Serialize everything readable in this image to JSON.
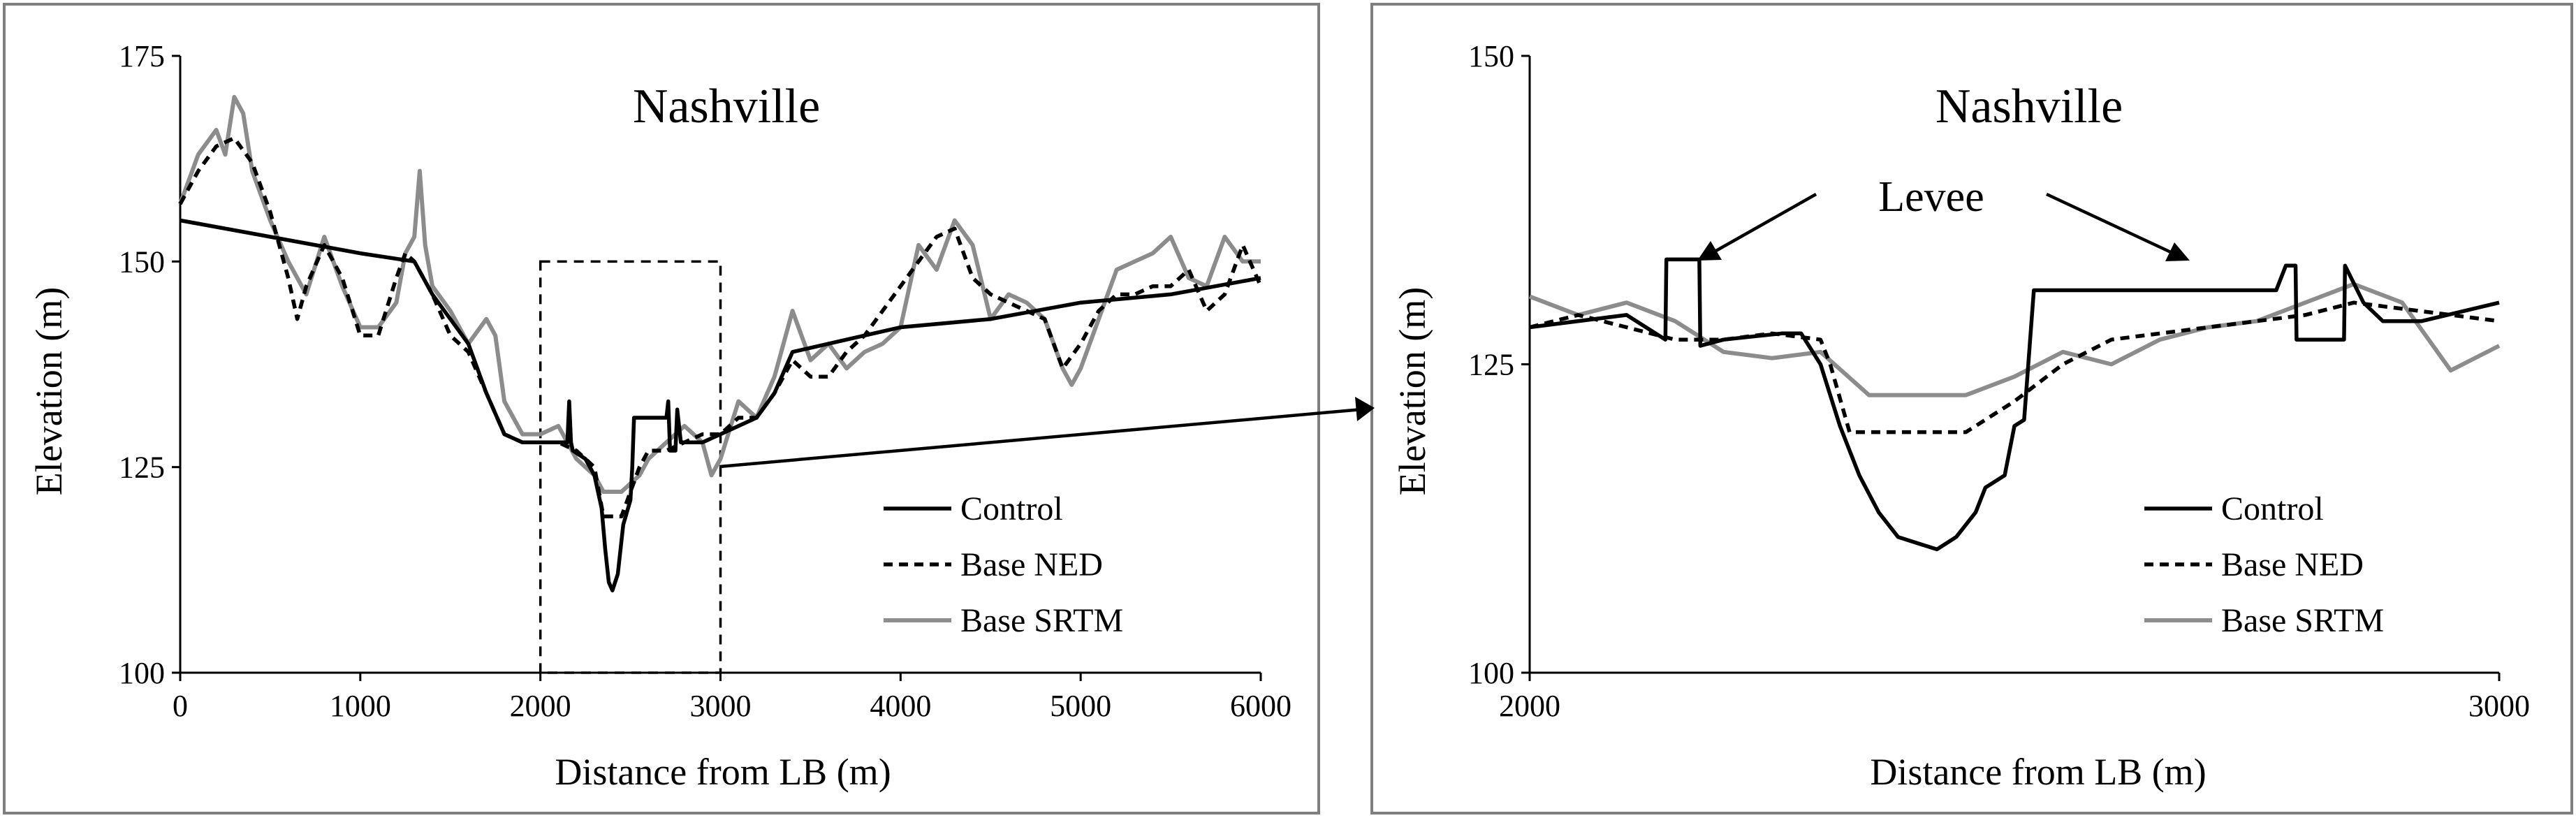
{
  "colors": {
    "control": "#000000",
    "base_ned": "#000000",
    "base_srtm": "#8c8c8c",
    "frame": "#7f7f7f"
  },
  "chart_data": [
    {
      "type": "line",
      "title": "Nashville",
      "xlabel": "Distance from LB (m)",
      "ylabel": "Elevation (m)",
      "xlim": [
        0,
        6000
      ],
      "ylim": [
        100,
        175
      ],
      "x_ticks": [
        0,
        1000,
        2000,
        3000,
        4000,
        5000,
        6000
      ],
      "y_ticks": [
        100,
        125,
        150,
        175
      ],
      "x_tick_labels": [
        "0",
        "1000",
        "2000",
        "3000",
        "4000",
        "5000",
        "6000"
      ],
      "y_tick_labels": [
        "100",
        "125",
        "150",
        "175"
      ],
      "legend": [
        "Control",
        "Base NED",
        "Base SRTM"
      ],
      "zoom_box": {
        "x": [
          2000,
          3000
        ],
        "y": [
          100,
          150
        ]
      },
      "series": [
        {
          "name": "Control",
          "style": "solid",
          "x": [
            0,
            500,
            1000,
            1300,
            1400,
            1600,
            1700,
            1800,
            1900,
            2000,
            2100,
            2150,
            2160,
            2170,
            2180,
            2250,
            2300,
            2340,
            2360,
            2380,
            2400,
            2430,
            2460,
            2500,
            2510,
            2520,
            2700,
            2710,
            2720,
            2750,
            2760,
            2780,
            2900,
            3000,
            3200,
            3300,
            3400,
            3600,
            4000,
            4500,
            5000,
            5500,
            6000
          ],
          "y": [
            155,
            153,
            151,
            150,
            146,
            140,
            134,
            129,
            128,
            128,
            128,
            128,
            133,
            128,
            127,
            126,
            124,
            120,
            115,
            111,
            110,
            112,
            118,
            121,
            125,
            131,
            131,
            133,
            127,
            127,
            132,
            128,
            128,
            129,
            131,
            134,
            139,
            140,
            142,
            143,
            145,
            146,
            148
          ]
        },
        {
          "name": "Base NED",
          "style": "dashed",
          "x": [
            0,
            100,
            200,
            300,
            400,
            500,
            600,
            650,
            700,
            800,
            900,
            1000,
            1100,
            1200,
            1250,
            1300,
            1350,
            1400,
            1500,
            1600,
            1700,
            1800,
            1900,
            2000,
            2100,
            2200,
            2300,
            2350,
            2400,
            2450,
            2500,
            2550,
            2600,
            2700,
            2800,
            2900,
            3000,
            3100,
            3200,
            3300,
            3400,
            3500,
            3600,
            3700,
            3800,
            3900,
            4000,
            4100,
            4200,
            4300,
            4400,
            4500,
            4600,
            4700,
            4800,
            4900,
            5000,
            5100,
            5200,
            5300,
            5400,
            5500,
            5600,
            5700,
            5800,
            5900,
            6000
          ],
          "y": [
            157,
            161,
            164,
            165,
            162,
            156,
            148,
            143,
            147,
            152,
            148,
            141,
            141,
            148,
            151,
            150,
            148,
            146,
            141,
            139,
            134,
            129,
            128,
            128,
            128,
            127,
            125,
            119,
            119,
            119,
            122,
            125,
            127,
            127,
            128,
            129,
            129,
            131,
            131,
            134,
            138,
            136,
            136,
            139,
            141,
            144,
            147,
            150,
            153,
            154,
            148,
            146,
            145,
            144,
            143,
            137,
            140,
            144,
            146,
            146,
            147,
            147,
            149,
            144,
            146,
            152,
            147
          ]
        },
        {
          "name": "Base SRTM",
          "style": "solid",
          "x": [
            0,
            100,
            200,
            250,
            300,
            350,
            400,
            500,
            600,
            700,
            800,
            900,
            1000,
            1100,
            1200,
            1250,
            1300,
            1330,
            1360,
            1400,
            1500,
            1600,
            1700,
            1750,
            1800,
            1900,
            2000,
            2100,
            2200,
            2300,
            2350,
            2400,
            2450,
            2500,
            2550,
            2600,
            2700,
            2800,
            2900,
            2950,
            3000,
            3100,
            3200,
            3300,
            3400,
            3500,
            3600,
            3700,
            3800,
            3900,
            4000,
            4100,
            4200,
            4300,
            4400,
            4500,
            4600,
            4700,
            4800,
            4900,
            4950,
            5000,
            5100,
            5200,
            5300,
            5400,
            5500,
            5600,
            5700,
            5800,
            5900,
            6000
          ],
          "y": [
            157,
            163,
            166,
            163,
            170,
            168,
            161,
            155,
            150,
            146,
            153,
            147,
            142,
            142,
            145,
            151,
            153,
            161,
            152,
            147,
            144,
            140,
            143,
            141,
            133,
            129,
            129,
            130,
            126,
            124,
            122,
            122,
            122,
            123,
            124,
            126,
            128,
            130,
            128,
            124,
            126,
            133,
            131,
            136,
            144,
            138,
            140,
            137,
            139,
            140,
            142,
            152,
            149,
            155,
            152,
            143,
            146,
            145,
            143,
            137,
            135,
            137,
            143,
            149,
            150,
            151,
            153,
            148,
            147,
            153,
            150,
            150
          ]
        }
      ]
    },
    {
      "type": "line",
      "title": "Nashville",
      "xlabel": "Distance from LB (m)",
      "ylabel": "Elevation (m)",
      "xlim": [
        2000,
        3000
      ],
      "ylim": [
        100,
        150
      ],
      "x_ticks": [
        2000,
        3000
      ],
      "y_ticks": [
        100,
        125,
        150
      ],
      "x_tick_labels": [
        "2000",
        "3000"
      ],
      "y_tick_labels": [
        "100",
        "125",
        "150"
      ],
      "legend": [
        "Control",
        "Base NED",
        "Base SRTM"
      ],
      "annotation": {
        "text": "Levee",
        "arrow_targets": [
          [
            2175,
            133.5
          ],
          [
            2780,
            133
          ]
        ]
      },
      "series": [
        {
          "name": "Control",
          "style": "solid",
          "x": [
            2000,
            2100,
            2140,
            2141,
            2175,
            2176,
            2200,
            2260,
            2280,
            2300,
            2320,
            2340,
            2360,
            2380,
            2400,
            2420,
            2440,
            2460,
            2470,
            2490,
            2500,
            2510,
            2520,
            2600,
            2700,
            2770,
            2780,
            2790,
            2791,
            2840,
            2841,
            2860,
            2880,
            2920,
            3000
          ],
          "y": [
            128,
            129,
            127,
            133.5,
            133.5,
            126.5,
            127,
            127.5,
            127.5,
            125,
            120,
            116,
            113,
            111,
            110.5,
            110,
            111,
            113,
            115,
            116,
            120,
            120.5,
            131,
            131,
            131,
            131,
            133,
            133,
            127,
            127,
            133,
            130,
            128.5,
            128.5,
            130
          ]
        },
        {
          "name": "Base NED",
          "style": "dashed",
          "x": [
            2000,
            2050,
            2100,
            2150,
            2200,
            2250,
            2300,
            2310,
            2330,
            2350,
            2400,
            2450,
            2500,
            2550,
            2600,
            2700,
            2800,
            2850,
            2900,
            3000
          ],
          "y": [
            128,
            129,
            128,
            127,
            127,
            127.5,
            127,
            125,
            119.5,
            119.5,
            119.5,
            119.5,
            122,
            125,
            127,
            128,
            129,
            130,
            129.5,
            128.5
          ]
        },
        {
          "name": "Base SRTM",
          "style": "solid",
          "x": [
            2000,
            2050,
            2100,
            2150,
            2200,
            2250,
            2300,
            2350,
            2400,
            2450,
            2500,
            2550,
            2600,
            2650,
            2700,
            2750,
            2800,
            2850,
            2900,
            2950,
            3000
          ],
          "y": [
            130.5,
            129,
            130,
            128.5,
            126,
            125.5,
            126,
            122.5,
            122.5,
            122.5,
            124,
            126,
            125,
            127,
            128,
            128.5,
            130,
            131.5,
            130,
            124.5,
            126.5
          ]
        }
      ]
    }
  ]
}
